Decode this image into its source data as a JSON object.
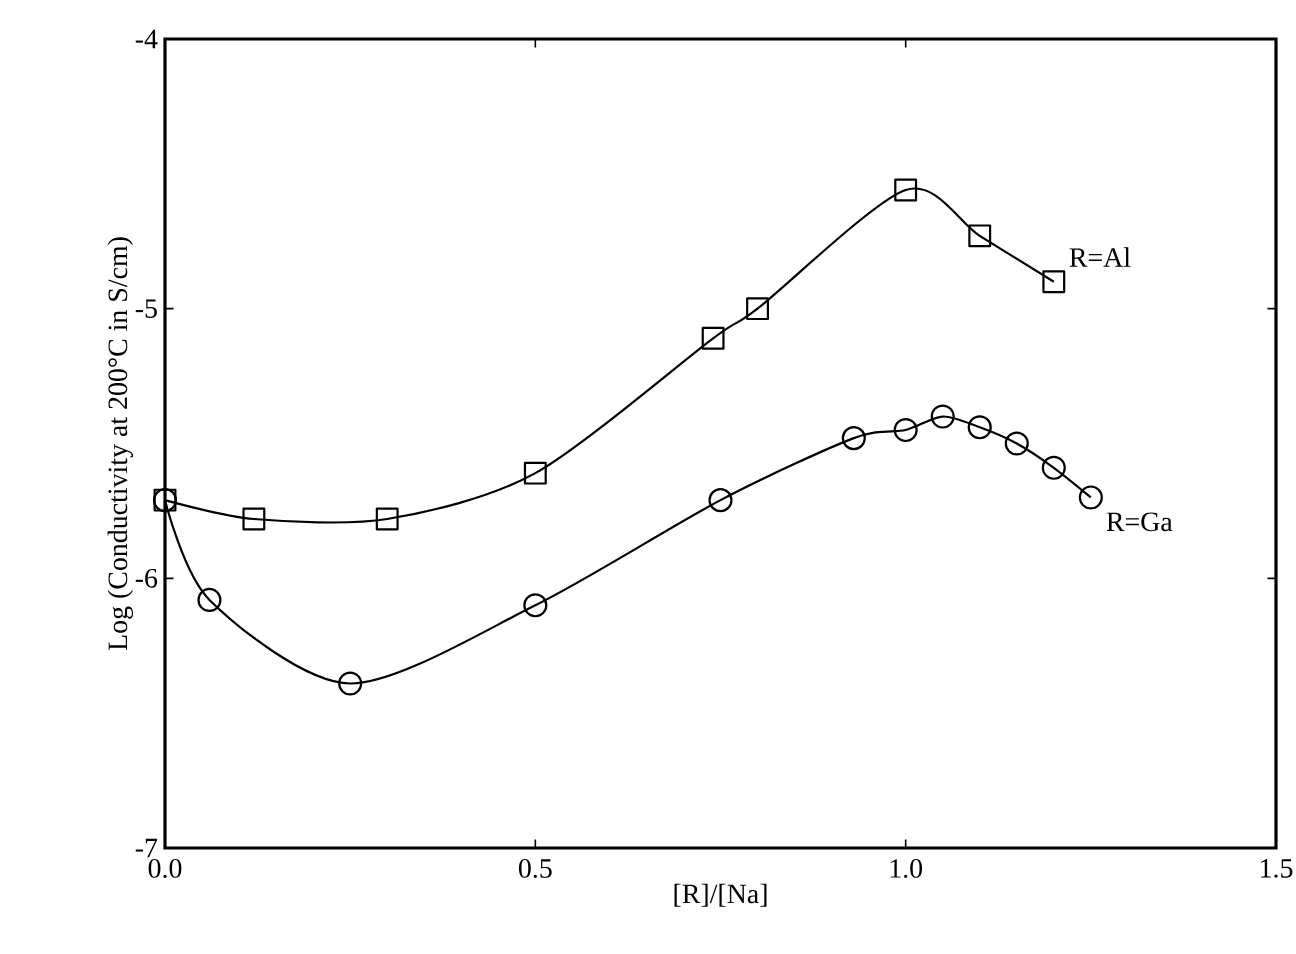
{
  "chart_data": {
    "type": "line",
    "xlabel": "[R]/[Na]",
    "ylabel": "Log (Conductivity at 200°C in S/cm)",
    "xlim": [
      0,
      1.5
    ],
    "ylim": [
      -7,
      -4
    ],
    "xticks": [
      {
        "value": 0,
        "label": "0.0"
      },
      0.5,
      {
        "value": 1,
        "label": "1.0"
      },
      1.5
    ],
    "yticks": [
      -7,
      -6,
      -5,
      -4
    ],
    "grid": false,
    "legend": false,
    "line_style": "solid",
    "series": [
      {
        "name": "R=Al",
        "color": "#000000",
        "marker": "square",
        "x": [
          0,
          0.12,
          0.3,
          0.5,
          0.74,
          0.8,
          1.0,
          1.1,
          1.2
        ],
        "values": [
          -5.71,
          -5.78,
          -5.78,
          -5.61,
          -5.11,
          -5.0,
          -4.56,
          -4.73,
          -4.9
        ]
      },
      {
        "name": "R=Ga",
        "color": "#000000",
        "marker": "circle",
        "x": [
          0,
          0.06,
          0.25,
          0.5,
          0.75,
          0.93,
          1.0,
          1.05,
          1.1,
          1.15,
          1.2,
          1.25
        ],
        "values": [
          -5.71,
          -6.08,
          -6.39,
          -6.1,
          -5.71,
          -5.48,
          -5.45,
          -5.4,
          -5.44,
          -5.5,
          -5.59,
          -5.7
        ]
      }
    ]
  }
}
